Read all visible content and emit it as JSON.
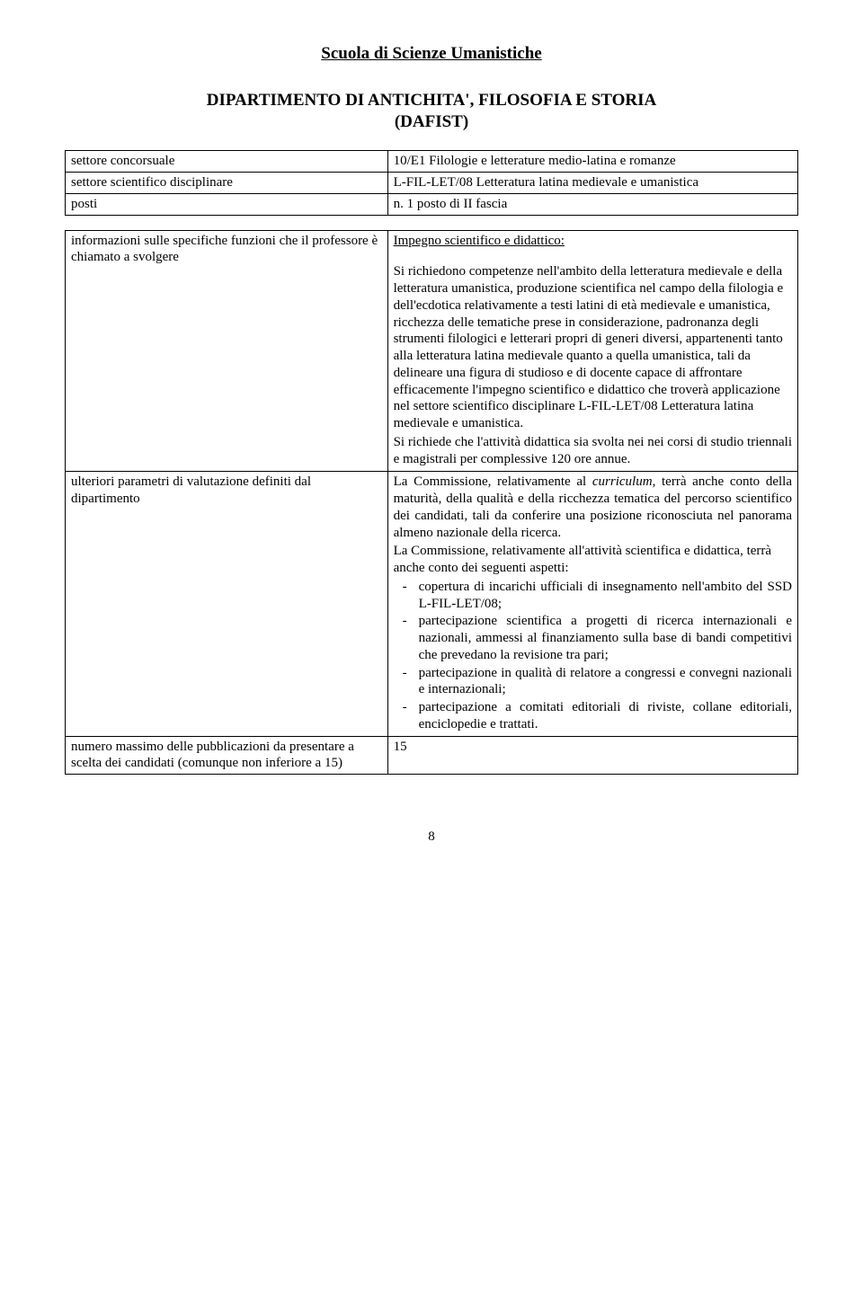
{
  "page": {
    "title": "Scuola di Scienze Umanistiche",
    "department": "DIPARTIMENTO DI ANTICHITA', FILOSOFIA E STORIA\n(DAFIST)",
    "page_number": "8"
  },
  "table1": {
    "rows": [
      {
        "label": "settore concorsuale",
        "value": "10/E1 Filologie e letterature medio-latina e romanze"
      },
      {
        "label": "settore scientifico disciplinare",
        "value": "L-FIL-LET/08 Letteratura latina medievale e umanistica"
      },
      {
        "label": "posti",
        "value": "n. 1 posto di II fascia"
      }
    ]
  },
  "table2": {
    "row1": {
      "label": "informazioni sulle specifiche funzioni che il professore è chiamato a svolgere",
      "value_heading": "Impegno scientifico e didattico:",
      "value_p1": "Si richiedono competenze nell'ambito della letteratura medievale e della letteratura umanistica, produzione scientifica nel campo della filologia e dell'ecdotica relativamente a testi latini di età medievale e umanistica, ricchezza delle tematiche prese in considerazione, padronanza degli strumenti filologici e letterari propri di generi diversi, appartenenti tanto alla letteratura latina medievale quanto a quella umanistica, tali da delineare una figura di studioso e di docente capace di affrontare efficacemente l'impegno scientifico e didattico che troverà applicazione nel settore scientifico disciplinare L-FIL-LET/08 Letteratura latina medievale e umanistica.",
      "value_p2": " Si richiede che l'attività didattica sia svolta nei nei corsi di studio triennali e magistrali per complessive 120 ore annue."
    },
    "row2": {
      "label": "ulteriori parametri di valutazione definiti dal dipartimento",
      "value_p1": "La Commissione, relativamente al curriculum, terrà anche conto della maturità, della qualità e della ricchezza tematica del percorso scientifico dei candidati, tali da conferire una posizione riconosciuta nel panorama almeno nazionale della ricerca.",
      "value_p2": "La Commissione, relativamente all'attività scientifica e didattica, terrà anche conto dei seguenti aspetti:",
      "bullets": [
        "copertura di incarichi ufficiali di insegnamento nell'ambito del SSD L-FIL-LET/08;",
        "partecipazione scientifica a progetti di ricerca internazionali e nazionali, ammessi al finanziamento sulla base di bandi competitivi che prevedano la revisione tra pari;",
        "partecipazione in qualità di relatore a congressi e convegni nazionali e internazionali;",
        "partecipazione a comitati editoriali di riviste, collane editoriali, enciclopedie e trattati."
      ]
    },
    "row3": {
      "label": "numero massimo delle pubblicazioni da presentare a scelta dei candidati (comunque non inferiore a  15)",
      "value": "15"
    }
  },
  "italic_word": "curriculum"
}
